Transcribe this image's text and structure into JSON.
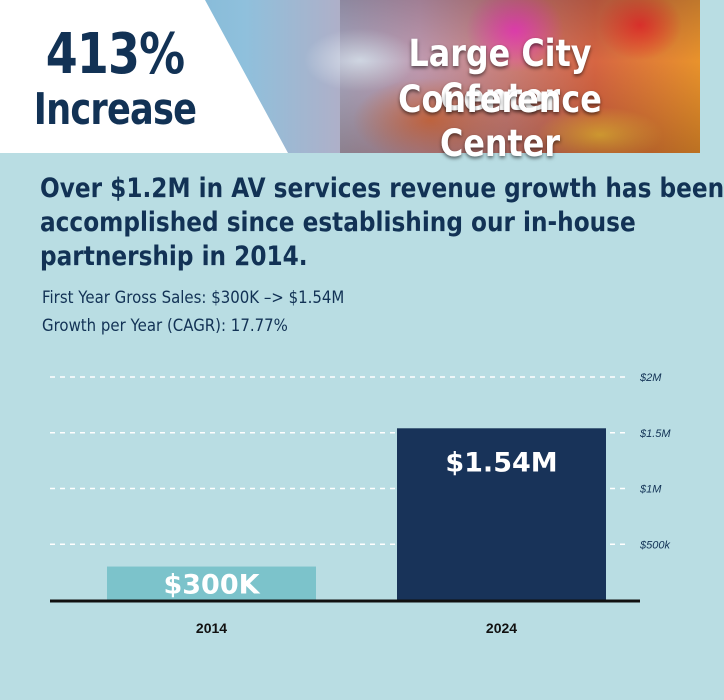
{
  "header": {
    "stat_value": "413%",
    "stat_label": "Increase",
    "venue_line1": "Large City Center",
    "venue_line2": "Conference Center"
  },
  "headline": {
    "line1": "Over $1.2M in AV services revenue growth has been",
    "line2": "accomplished since establishing our in-house",
    "line3": "partnership in 2014."
  },
  "details": {
    "line1": "First Year Gross Sales: $300K –> $1.54M",
    "line2": "Growth per Year (CAGR): 17.77%"
  },
  "colors": {
    "navy": "#123255",
    "teal_bar": "#7cc3cb",
    "navy_bar": "#183359",
    "background": "#b9dde3"
  },
  "chart_data": {
    "type": "bar",
    "categories": [
      "2014",
      "2024"
    ],
    "values": [
      0.3,
      1.54
    ],
    "value_labels": [
      "$300K",
      "$1.54M"
    ],
    "bar_colors": [
      "#7cc3cb",
      "#183359"
    ],
    "ylim": [
      0,
      2
    ],
    "yticks": [
      0.5,
      1,
      1.5,
      2
    ],
    "ytick_labels": [
      "$500k",
      "$1M",
      "$1.5M",
      "$2M"
    ],
    "grid": true,
    "axis_side": "right"
  }
}
